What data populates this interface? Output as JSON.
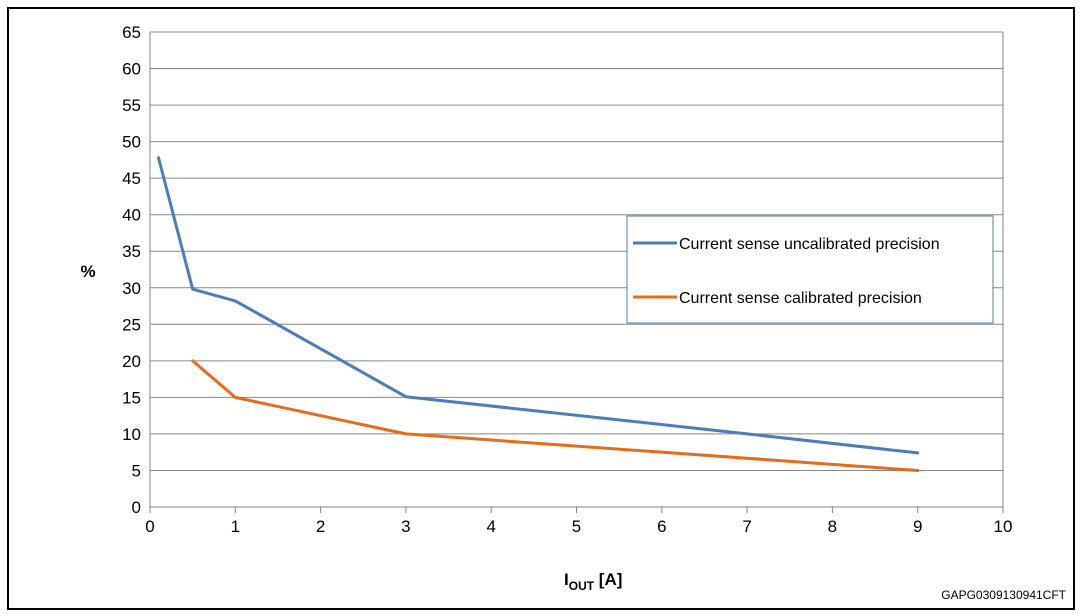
{
  "chart_data": {
    "type": "line",
    "title": "",
    "xlabel_main": "I",
    "xlabel_sub": "OUT",
    "xlabel_unit": " [A]",
    "ylabel": "%",
    "xlim": [
      0,
      10
    ],
    "ylim": [
      0,
      65
    ],
    "xticks": [
      0,
      1,
      2,
      3,
      4,
      5,
      6,
      7,
      8,
      9,
      10
    ],
    "yticks": [
      0,
      5,
      10,
      15,
      20,
      25,
      30,
      35,
      40,
      45,
      50,
      55,
      60,
      65
    ],
    "grid": "horizontal",
    "legend_position": "right",
    "series": [
      {
        "name": "Current sense uncalibrated precision",
        "color": "#4a7ebb",
        "x": [
          0.1,
          0.5,
          1,
          3,
          7,
          9
        ],
        "y": [
          47.8,
          29.8,
          28.2,
          15.1,
          10.0,
          7.4
        ]
      },
      {
        "name": "Current sense calibrated precision",
        "color": "#e46c1a",
        "x": [
          0.5,
          1,
          3,
          9
        ],
        "y": [
          20.0,
          15.0,
          10.0,
          5.0
        ]
      }
    ]
  },
  "figure_code": "GAPG0309130941CFT"
}
